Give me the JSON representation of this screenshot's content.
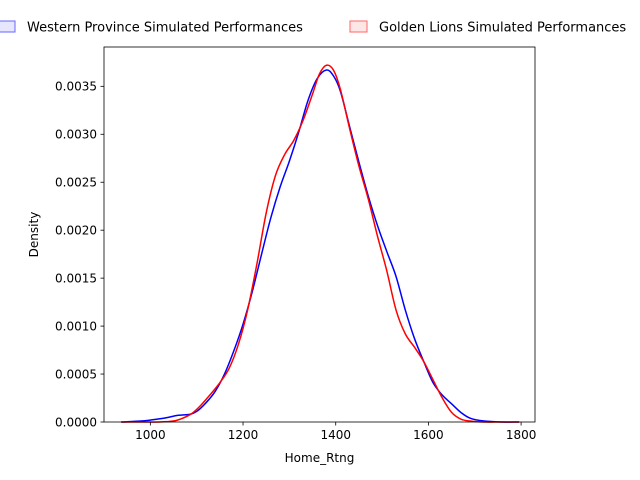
{
  "chart_data": {
    "type": "line",
    "title": "",
    "xlabel": "Home_Rtng",
    "ylabel": "Density",
    "xlim": [
      900,
      1830
    ],
    "ylim": [
      0,
      0.00391
    ],
    "x_ticks": [
      1000,
      1200,
      1400,
      1600,
      1800
    ],
    "x_tick_labels": [
      "1000",
      "1200",
      "1400",
      "1600",
      "1800"
    ],
    "y_ticks": [
      0,
      0.0005,
      0.001,
      0.0015,
      0.002,
      0.0025,
      0.003,
      0.0035
    ],
    "y_tick_labels": [
      "0.0000",
      "0.0005",
      "0.0010",
      "0.0015",
      "0.0020",
      "0.0025",
      "0.0030",
      "0.0035"
    ],
    "grid": false,
    "legend_position": "top",
    "series": [
      {
        "name": "Western Province Simulated Performances",
        "color": "#0000ff",
        "legend_fill": "#e6e6ff",
        "legend_edge": "#6666ff",
        "points": [
          [
            938,
            0
          ],
          [
            980,
            1e-05
          ],
          [
            1000,
            2e-05
          ],
          [
            1030,
            4e-05
          ],
          [
            1060,
            7e-05
          ],
          [
            1085,
            8e-05
          ],
          [
            1100,
            0.00011
          ],
          [
            1120,
            0.0002
          ],
          [
            1140,
            0.00032
          ],
          [
            1160,
            0.0005
          ],
          [
            1180,
            0.00074
          ],
          [
            1200,
            0.00102
          ],
          [
            1220,
            0.00136
          ],
          [
            1240,
            0.00175
          ],
          [
            1260,
            0.00213
          ],
          [
            1280,
            0.00245
          ],
          [
            1300,
            0.00272
          ],
          [
            1320,
            0.00302
          ],
          [
            1340,
            0.00335
          ],
          [
            1360,
            0.00358
          ],
          [
            1380,
            0.00367
          ],
          [
            1395,
            0.00361
          ],
          [
            1410,
            0.00345
          ],
          [
            1430,
            0.00308
          ],
          [
            1450,
            0.00271
          ],
          [
            1470,
            0.00236
          ],
          [
            1490,
            0.00205
          ],
          [
            1510,
            0.00178
          ],
          [
            1530,
            0.00152
          ],
          [
            1550,
            0.00117
          ],
          [
            1570,
            0.00087
          ],
          [
            1590,
            0.00063
          ],
          [
            1610,
            0.00041
          ],
          [
            1630,
            0.00028
          ],
          [
            1650,
            0.00019
          ],
          [
            1670,
            0.0001
          ],
          [
            1690,
            4e-05
          ],
          [
            1720,
            1e-05
          ],
          [
            1760,
            0
          ],
          [
            1795,
            0
          ]
        ]
      },
      {
        "name": "Golden Lions Simulated Performances",
        "color": "#ff0000",
        "legend_fill": "#ffe6e6",
        "legend_edge": "#ff6666",
        "points": [
          [
            938,
            0
          ],
          [
            980,
            0
          ],
          [
            1020,
            0
          ],
          [
            1050,
            1e-05
          ],
          [
            1070,
            4e-05
          ],
          [
            1090,
            9e-05
          ],
          [
            1110,
            0.00018
          ],
          [
            1130,
            0.00029
          ],
          [
            1150,
            0.00041
          ],
          [
            1170,
            0.00056
          ],
          [
            1190,
            0.00081
          ],
          [
            1210,
            0.00117
          ],
          [
            1230,
            0.00165
          ],
          [
            1250,
            0.00218
          ],
          [
            1270,
            0.00257
          ],
          [
            1290,
            0.00279
          ],
          [
            1310,
            0.00294
          ],
          [
            1330,
            0.00315
          ],
          [
            1350,
            0.00342
          ],
          [
            1365,
            0.00363
          ],
          [
            1380,
            0.00372
          ],
          [
            1395,
            0.00367
          ],
          [
            1410,
            0.00347
          ],
          [
            1430,
            0.00306
          ],
          [
            1450,
            0.00267
          ],
          [
            1470,
            0.00233
          ],
          [
            1490,
            0.00194
          ],
          [
            1510,
            0.00158
          ],
          [
            1530,
            0.00117
          ],
          [
            1550,
            0.00092
          ],
          [
            1570,
            0.00078
          ],
          [
            1590,
            0.00063
          ],
          [
            1610,
            0.00044
          ],
          [
            1630,
            0.00025
          ],
          [
            1650,
            0.0001
          ],
          [
            1670,
            3e-05
          ],
          [
            1690,
            1e-05
          ],
          [
            1720,
            0
          ],
          [
            1760,
            0
          ],
          [
            1795,
            0
          ]
        ]
      }
    ]
  }
}
